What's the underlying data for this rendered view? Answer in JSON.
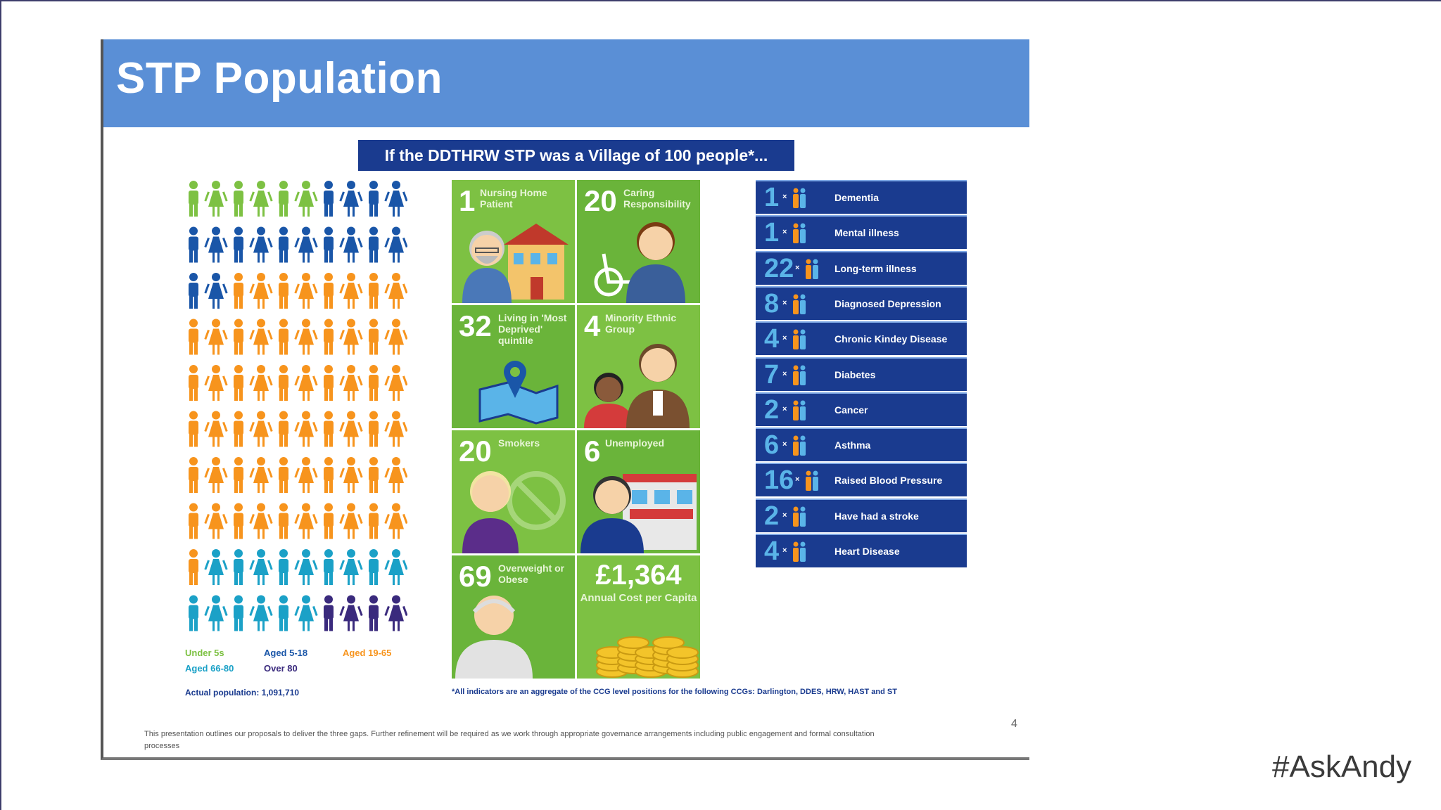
{
  "slide": {
    "title": "STP Population",
    "banner": "If the DDTHRW STP was a Village of 100 people*...",
    "page_number": "4",
    "bottom_note": "This presentation outlines our proposals to deliver the three gaps. Further refinement will be required as we work through appropriate governance arrangements including public engagement and formal consultation processes"
  },
  "population": {
    "groups": [
      {
        "label": "Under 5s",
        "count": 6,
        "color": "#7dc143"
      },
      {
        "label": "Aged 5-18",
        "count": 16,
        "color": "#1a56a8"
      },
      {
        "label": "Aged 19-65",
        "count": 59,
        "color": "#f7941d"
      },
      {
        "label": "Aged 66-80",
        "count": 15,
        "color": "#1ba1c7"
      },
      {
        "label": "Over 80",
        "count": 4,
        "color": "#3a2a7d"
      }
    ],
    "actual_population": "Actual population: 1,091,710"
  },
  "tiles": [
    {
      "num": "1",
      "label": "Nursing Home Patient",
      "icon": "elderly-man-care-home-icon"
    },
    {
      "num": "20",
      "label": "Caring Responsibility",
      "icon": "carer-wheelchair-icon"
    },
    {
      "num": "32",
      "label": "Living in 'Most Deprived' quintile",
      "icon": "map-pin-icon"
    },
    {
      "num": "4",
      "label": "Minority Ethnic Group",
      "icon": "family-icon"
    },
    {
      "num": "20",
      "label": "Smokers",
      "icon": "no-smoking-icon"
    },
    {
      "num": "6",
      "label": "Unemployed",
      "icon": "job-centre-icon"
    },
    {
      "num": "69",
      "label": "Overweight or Obese",
      "icon": "person-icon"
    },
    {
      "num": "£1,364",
      "label": "Annual Cost per Capita",
      "icon": "coins-icon"
    }
  ],
  "footnote": "*All indicators are an aggregate of the CCG level positions for the following CCGs: Darlington, DDES, HRW, HAST and ST",
  "conditions": [
    {
      "n": "1",
      "label": "Dementia"
    },
    {
      "n": "1",
      "label": "Mental illness"
    },
    {
      "n": "22",
      "label": "Long-term illness"
    },
    {
      "n": "8",
      "label": "Diagnosed Depression"
    },
    {
      "n": "4",
      "label": "Chronic Kindey Disease"
    },
    {
      "n": "7",
      "label": "Diabetes"
    },
    {
      "n": "2",
      "label": "Cancer"
    },
    {
      "n": "6",
      "label": "Asthma"
    },
    {
      "n": "16",
      "label": "Raised Blood Pressure"
    },
    {
      "n": "2",
      "label": "Have had a stroke"
    },
    {
      "n": "4",
      "label": "Heart Disease"
    }
  ],
  "condition_multiplier": "×",
  "hashtag": "#AskAndy"
}
